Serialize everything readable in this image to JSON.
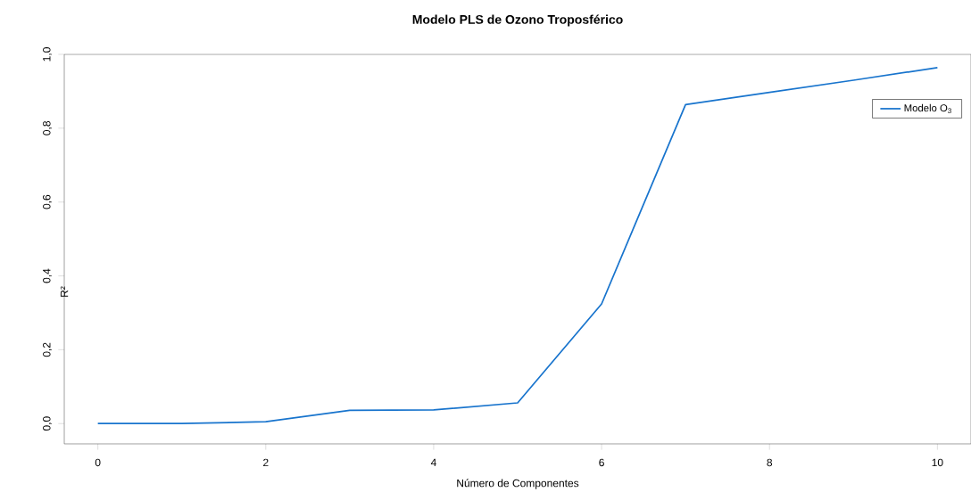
{
  "chart_data": {
    "type": "line",
    "title": "Modelo PLS de Ozono Troposférico",
    "xlabel": "Número de Componentes",
    "ylabel": "R²",
    "x": [
      0,
      1,
      2,
      3,
      4,
      5,
      6,
      7,
      8,
      9,
      10
    ],
    "series": [
      {
        "name": "Modelo O$_{3}$",
        "color": "#1874cd",
        "values": [
          0.0,
          0.0,
          0.005,
          0.036,
          0.037,
          0.056,
          0.324,
          0.864,
          0.897,
          0.93,
          0.964
        ]
      }
    ],
    "xlim": [
      -0.4,
      10.4
    ],
    "ylim": [
      -0.055,
      1.0
    ],
    "xticks": [
      0,
      2,
      4,
      6,
      8,
      10
    ],
    "yticks": [
      {
        "value": 0,
        "label": "0,0"
      },
      {
        "value": 0.2,
        "label": "0,2"
      },
      {
        "value": 0.4,
        "label": "0,4"
      },
      {
        "value": 0.6,
        "label": "0,6"
      },
      {
        "value": 0.8,
        "label": "0,8"
      },
      {
        "value": 1.0,
        "label": "1,0"
      }
    ],
    "grid": false,
    "legend": "top right",
    "marker": "none",
    "line_style": "solid"
  }
}
